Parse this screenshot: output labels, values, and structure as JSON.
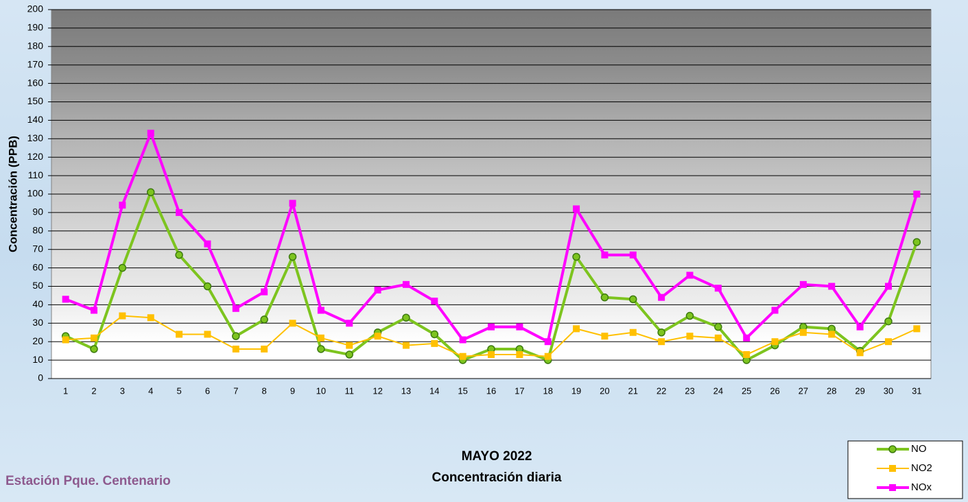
{
  "chart_data": {
    "type": "line",
    "title": "MAYO 2022",
    "subtitle": "Concentración diaria",
    "station": "Estación Pque. Centenario",
    "y_label": "Concentración  (PPB)",
    "categories": [
      "1",
      "2",
      "3",
      "4",
      "5",
      "6",
      "7",
      "8",
      "9",
      "10",
      "11",
      "12",
      "13",
      "14",
      "15",
      "16",
      "17",
      "18",
      "19",
      "20",
      "21",
      "22",
      "23",
      "24",
      "25",
      "26",
      "27",
      "28",
      "29",
      "30",
      "31"
    ],
    "ylim": [
      0,
      200
    ],
    "yticks": [
      0,
      10,
      20,
      30,
      40,
      50,
      60,
      70,
      80,
      90,
      100,
      110,
      120,
      130,
      140,
      150,
      160,
      170,
      180,
      190,
      200
    ],
    "grid": true,
    "legend": "bottom-right",
    "series": [
      {
        "name": "NO",
        "color": "#7dc41f",
        "marker": "circle",
        "values": [
          23,
          16,
          60,
          101,
          67,
          50,
          23,
          32,
          66,
          16,
          13,
          25,
          33,
          24,
          10,
          16,
          16,
          10,
          66,
          44,
          43,
          25,
          34,
          28,
          10,
          18,
          28,
          27,
          15,
          31,
          74
        ]
      },
      {
        "name": "NO2",
        "color": "#ffc000",
        "marker": "square",
        "values": [
          21,
          22,
          34,
          33,
          24,
          24,
          16,
          16,
          30,
          22,
          18,
          23,
          18,
          19,
          12,
          13,
          13,
          12,
          27,
          23,
          25,
          20,
          23,
          22,
          13,
          20,
          25,
          24,
          14,
          20,
          27
        ]
      },
      {
        "name": "NOx",
        "color": "#ff00ff",
        "marker": "square",
        "values": [
          43,
          37,
          94,
          133,
          90,
          73,
          38,
          47,
          95,
          37,
          30,
          48,
          51,
          42,
          21,
          28,
          28,
          20,
          92,
          67,
          67,
          44,
          56,
          49,
          22,
          37,
          51,
          50,
          28,
          50,
          100
        ]
      }
    ]
  }
}
